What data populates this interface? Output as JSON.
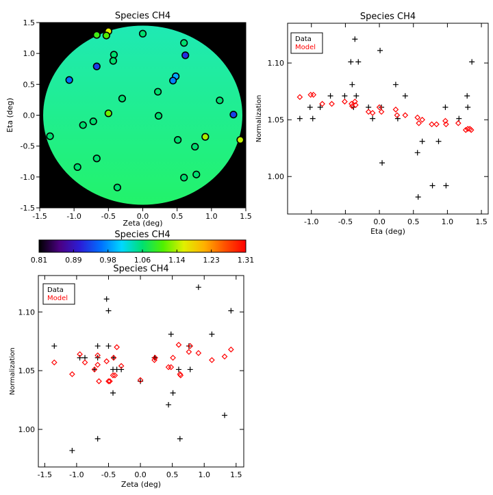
{
  "colors": {
    "axis": "#000000",
    "background": "#000000",
    "data": "#000000",
    "model": "#ff0000"
  },
  "chart_data": [
    {
      "type": "scatter",
      "id": "map",
      "title": "Species CH4",
      "xlabel": "Zeta (deg)",
      "ylabel": "Eta (deg)",
      "xlim": [
        -1.5,
        1.5
      ],
      "ylim": [
        -1.5,
        1.5
      ],
      "xticks": [
        "-1.5",
        "-1.0",
        "-0.5",
        "0.0",
        "0.5",
        "1.0",
        "1.5"
      ],
      "yticks": [
        "-1.5",
        "-1.0",
        "-0.5",
        "0.0",
        "0.5",
        "1.0",
        "1.5"
      ],
      "background_disk": {
        "center": [
          0,
          0
        ],
        "radius": 1.45,
        "color_top": "#1fe9b4",
        "color_bottom": "#22f36a"
      },
      "points": [
        {
          "x": -0.67,
          "y": 1.3,
          "value": 1.1
        },
        {
          "x": -0.5,
          "y": 1.36,
          "value": 1.16
        },
        {
          "x": -0.53,
          "y": 1.29,
          "value": 1.11
        },
        {
          "x": 0.0,
          "y": 1.32,
          "value": 1.06
        },
        {
          "x": 0.6,
          "y": 1.17,
          "value": 1.06
        },
        {
          "x": 0.62,
          "y": 0.97,
          "value": 0.92
        },
        {
          "x": -0.42,
          "y": 0.98,
          "value": 1.06
        },
        {
          "x": -0.43,
          "y": 0.88,
          "value": 1.06
        },
        {
          "x": -0.67,
          "y": 0.79,
          "value": 0.93
        },
        {
          "x": -1.07,
          "y": 0.57,
          "value": 0.96
        },
        {
          "x": 0.48,
          "y": 0.63,
          "value": 0.99
        },
        {
          "x": 0.44,
          "y": 0.56,
          "value": 0.97
        },
        {
          "x": 0.22,
          "y": 0.38,
          "value": 1.06
        },
        {
          "x": -0.3,
          "y": 0.27,
          "value": 1.06
        },
        {
          "x": 1.12,
          "y": 0.24,
          "value": 1.06
        },
        {
          "x": -0.5,
          "y": 0.03,
          "value": 1.12
        },
        {
          "x": 0.23,
          "y": -0.01,
          "value": 1.06
        },
        {
          "x": 1.32,
          "y": 0.01,
          "value": 0.93
        },
        {
          "x": -0.72,
          "y": -0.1,
          "value": 1.06
        },
        {
          "x": -0.87,
          "y": -0.16,
          "value": 1.06
        },
        {
          "x": -1.35,
          "y": -0.34,
          "value": 1.06
        },
        {
          "x": 0.91,
          "y": -0.35,
          "value": 1.14
        },
        {
          "x": 0.51,
          "y": -0.4,
          "value": 1.06
        },
        {
          "x": 1.42,
          "y": -0.4,
          "value": 1.15
        },
        {
          "x": 0.76,
          "y": -0.51,
          "value": 1.06
        },
        {
          "x": -0.67,
          "y": -0.7,
          "value": 1.06
        },
        {
          "x": -0.95,
          "y": -0.84,
          "value": 1.06
        },
        {
          "x": 0.78,
          "y": -0.96,
          "value": 1.06
        },
        {
          "x": 0.6,
          "y": -1.01,
          "value": 1.06
        },
        {
          "x": -0.37,
          "y": -1.17,
          "value": 1.06
        }
      ]
    },
    {
      "type": "colorbar",
      "id": "colorbar",
      "title": "Species CH4",
      "range": [
        0.81,
        1.31
      ],
      "tick_labels": [
        "0.81",
        "0.89",
        "0.98",
        "1.06",
        "1.14",
        "1.23",
        "1.31"
      ],
      "colormap": [
        "#000000",
        "#4b0082",
        "#2a1ed8",
        "#0070ff",
        "#00d8ff",
        "#00e070",
        "#50f000",
        "#e0f000",
        "#ffb000",
        "#ff5000",
        "#ff0000"
      ]
    },
    {
      "type": "scatter",
      "id": "eta",
      "title": "Species CH4",
      "xlabel": "Eta (deg)",
      "ylabel": "Normalization",
      "xlim": [
        -1.35,
        1.6
      ],
      "ylim": [
        0.967,
        1.135
      ],
      "xticks": [
        -1.0,
        -0.5,
        0.0,
        0.5,
        1.0,
        1.5
      ],
      "xtick_labels": [
        "-1.0",
        "-0.5",
        "0.0",
        "0.5",
        "1.0",
        "1.5"
      ],
      "yticks": [
        1.0,
        1.05,
        1.1
      ],
      "ytick_labels": [
        "1.00",
        "1.05",
        "1.10"
      ],
      "legend": {
        "position": "top-left",
        "entries": [
          "Data",
          "Model"
        ]
      },
      "series": [
        {
          "name": "Data",
          "marker": "plus",
          "x": [
            -1.17,
            -1.02,
            -0.98,
            -0.87,
            -0.72,
            -0.51,
            -0.42,
            -0.4,
            -0.38,
            -0.36,
            -0.34,
            -0.31,
            -0.16,
            -0.1,
            0.01,
            0.03,
            0.04,
            0.24,
            0.27,
            0.38,
            0.56,
            0.57,
            0.63,
            0.78,
            0.87,
            0.97,
            0.98,
            1.17,
            1.29,
            1.3,
            1.36
          ],
          "y": [
            1.051,
            1.061,
            1.051,
            1.061,
            1.071,
            1.071,
            1.101,
            1.081,
            1.061,
            1.121,
            1.071,
            1.101,
            1.061,
            1.051,
            1.111,
            1.061,
            1.012,
            1.081,
            1.051,
            1.071,
            1.021,
            0.982,
            1.031,
            0.992,
            1.031,
            1.061,
            0.992,
            1.051,
            1.071,
            1.061,
            1.101
          ]
        },
        {
          "name": "Model",
          "marker": "diamond",
          "x": [
            -1.17,
            -1.01,
            -0.97,
            -0.84,
            -0.7,
            -0.51,
            -0.41,
            -0.4,
            -0.36,
            -0.35,
            -0.16,
            -0.1,
            0.0,
            0.03,
            0.24,
            0.26,
            0.38,
            0.56,
            0.58,
            0.63,
            0.77,
            0.84,
            0.97,
            0.98,
            1.16,
            1.27,
            1.3,
            1.33,
            1.35
          ],
          "y": [
            1.07,
            1.072,
            1.072,
            1.064,
            1.064,
            1.066,
            1.064,
            1.062,
            1.066,
            1.063,
            1.057,
            1.056,
            1.061,
            1.057,
            1.059,
            1.054,
            1.054,
            1.052,
            1.047,
            1.05,
            1.046,
            1.046,
            1.049,
            1.046,
            1.047,
            1.041,
            1.042,
            1.042,
            1.041
          ]
        }
      ]
    },
    {
      "type": "scatter",
      "id": "zeta",
      "title": "Species CH4",
      "xlabel": "Zeta (deg)",
      "ylabel": "Normalization",
      "xlim": [
        -1.6,
        1.62
      ],
      "ylim": [
        0.968,
        1.131
      ],
      "xticks": [
        -1.5,
        -1.0,
        -0.5,
        0.0,
        0.5,
        1.0,
        1.5
      ],
      "xtick_labels": [
        "-1.5",
        "-1.0",
        "-0.5",
        "0.0",
        "0.5",
        "1.0",
        "1.5"
      ],
      "yticks": [
        1.0,
        1.05,
        1.1
      ],
      "ytick_labels": [
        "1.00",
        "1.05",
        "1.10"
      ],
      "legend": {
        "position": "top-left",
        "entries": [
          "Data",
          "Model"
        ]
      },
      "series": [
        {
          "name": "Data",
          "marker": "plus",
          "x": [
            -1.35,
            -1.07,
            -0.95,
            -0.87,
            -0.72,
            -0.67,
            -0.67,
            -0.67,
            -0.53,
            -0.5,
            -0.5,
            -0.43,
            -0.42,
            -0.43,
            -0.37,
            -0.3,
            0.0,
            0.22,
            0.23,
            0.44,
            0.48,
            0.51,
            0.6,
            0.62,
            0.76,
            0.78,
            0.91,
            1.12,
            1.32,
            1.42
          ],
          "y": [
            1.071,
            0.982,
            1.061,
            1.061,
            1.051,
            1.071,
            1.061,
            0.992,
            1.111,
            1.071,
            1.101,
            1.031,
            1.061,
            1.051,
            1.051,
            1.051,
            1.041,
            1.061,
            1.061,
            1.021,
            1.081,
            1.031,
            1.051,
            0.992,
            1.071,
            1.051,
            1.121,
            1.081,
            1.012,
            1.101
          ]
        },
        {
          "name": "Model",
          "marker": "diamond",
          "x": [
            -1.35,
            -1.07,
            -0.95,
            -0.87,
            -0.72,
            -0.67,
            -0.67,
            -0.65,
            -0.53,
            -0.5,
            -0.48,
            -0.43,
            -0.42,
            -0.4,
            -0.37,
            -0.3,
            0.0,
            0.22,
            0.23,
            0.44,
            0.48,
            0.51,
            0.6,
            0.62,
            0.63,
            0.76,
            0.78,
            0.91,
            1.12,
            1.32,
            1.42
          ],
          "y": [
            1.057,
            1.047,
            1.064,
            1.057,
            1.051,
            1.063,
            1.055,
            1.041,
            1.058,
            1.041,
            1.041,
            1.046,
            1.061,
            1.046,
            1.07,
            1.054,
            1.042,
            1.059,
            1.061,
            1.053,
            1.053,
            1.061,
            1.072,
            1.047,
            1.046,
            1.066,
            1.071,
            1.065,
            1.059,
            1.062,
            1.068
          ]
        }
      ]
    }
  ]
}
